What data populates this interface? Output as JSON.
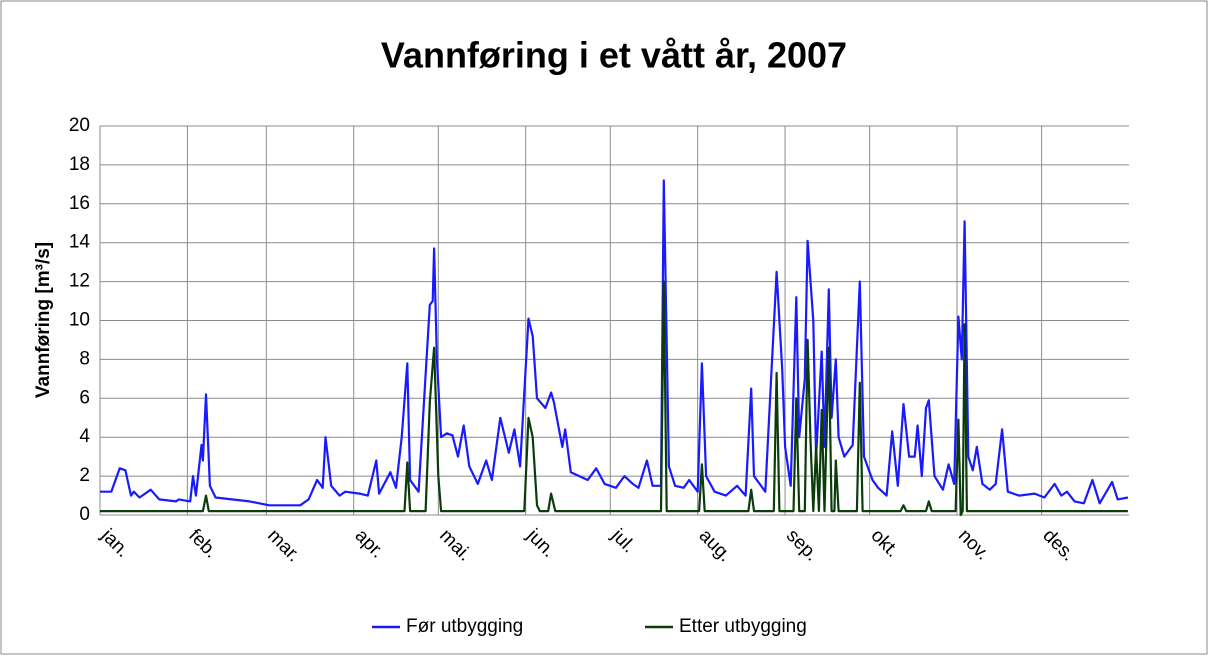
{
  "chart_data": {
    "type": "line",
    "title": "Vannføring i et vått år, 2007",
    "y_label": "Vannføring [m³/s]",
    "xlim": [
      0,
      365
    ],
    "xticks": [
      {
        "value": 0,
        "label": "jan."
      },
      {
        "value": 31,
        "label": "feb."
      },
      {
        "value": 59,
        "label": "mar."
      },
      {
        "value": 90,
        "label": "apr."
      },
      {
        "value": 120,
        "label": "mai."
      },
      {
        "value": 151,
        "label": "jun."
      },
      {
        "value": 181,
        "label": "jul."
      },
      {
        "value": 212,
        "label": "aug."
      },
      {
        "value": 243,
        "label": "sep."
      },
      {
        "value": 273,
        "label": "okt."
      },
      {
        "value": 304,
        "label": "nov."
      },
      {
        "value": 334,
        "label": "des."
      }
    ],
    "ylim": [
      0,
      20
    ],
    "yticks": [
      0,
      2,
      4,
      6,
      8,
      10,
      12,
      14,
      16,
      18,
      20
    ],
    "grid": true,
    "legend": "bottom",
    "series": [
      {
        "name": "Før utbygging",
        "color": "#1a1aff",
        "x": [
          0,
          4,
          7,
          9,
          11,
          12,
          14,
          18,
          21,
          27,
          28,
          32,
          33,
          34,
          36,
          36.5,
          37.6,
          39,
          41,
          53,
          60,
          71,
          74,
          77,
          79,
          80,
          82,
          85,
          87,
          92,
          95,
          98,
          99,
          103,
          105,
          107,
          109,
          110,
          113,
          115,
          117,
          118,
          118.5,
          119.5,
          121,
          123,
          125,
          127,
          129,
          131,
          134,
          137,
          139,
          142,
          145,
          147,
          149,
          152,
          153.5,
          155,
          158,
          160,
          161,
          164,
          165,
          167,
          170,
          173,
          176,
          179,
          183,
          186,
          189,
          191,
          194,
          196,
          199,
          200,
          201.8,
          204,
          207,
          209,
          212,
          213.5,
          215,
          218,
          222,
          226,
          229,
          231,
          232,
          236,
          240,
          242,
          243,
          245,
          247,
          248,
          250,
          251,
          253,
          254,
          256,
          257,
          258.5,
          259.5,
          261,
          262,
          264,
          267,
          269.5,
          271,
          274,
          276,
          279,
          281,
          283,
          285,
          287,
          289,
          290,
          291.5,
          293,
          294,
          296,
          299,
          301,
          303,
          304.5,
          305.7,
          306.7,
          308,
          309.6,
          311,
          313,
          315.6,
          317.7,
          320,
          322,
          326,
          331.5,
          335,
          338.6,
          341,
          343,
          345.7,
          349,
          352,
          354.6,
          359,
          361,
          364.6
        ],
        "values": [
          1.2,
          1.2,
          2.4,
          2.3,
          1.0,
          1.2,
          0.9,
          1.3,
          0.8,
          0.7,
          0.8,
          0.7,
          2.0,
          1.0,
          3.6,
          2.8,
          6.2,
          1.5,
          0.9,
          0.7,
          0.5,
          0.5,
          0.8,
          1.8,
          1.4,
          4.0,
          1.5,
          1.0,
          1.2,
          1.1,
          1.0,
          2.8,
          1.1,
          2.2,
          1.4,
          4.0,
          7.8,
          1.8,
          1.2,
          6.0,
          10.8,
          11.0,
          13.7,
          8.0,
          4.0,
          4.2,
          4.1,
          3.0,
          4.6,
          2.5,
          1.6,
          2.8,
          1.8,
          5.0,
          3.2,
          4.4,
          2.5,
          10.1,
          9.2,
          6.0,
          5.5,
          6.3,
          5.8,
          3.5,
          4.4,
          2.2,
          2.0,
          1.8,
          2.4,
          1.6,
          1.4,
          2.0,
          1.6,
          1.4,
          2.8,
          1.5,
          1.5,
          17.2,
          2.5,
          1.5,
          1.4,
          1.8,
          1.2,
          7.8,
          2.0,
          1.2,
          1.0,
          1.5,
          1.0,
          6.5,
          2.0,
          1.2,
          12.5,
          7.5,
          3.5,
          1.5,
          11.2,
          4.0,
          7.0,
          14.1,
          10.0,
          3.0,
          8.4,
          3.5,
          11.6,
          5.0,
          8.0,
          4.0,
          3.0,
          3.6,
          12.0,
          3.0,
          1.8,
          1.4,
          1.0,
          4.3,
          1.5,
          5.7,
          3.0,
          3.0,
          4.6,
          2.0,
          5.5,
          5.9,
          2.0,
          1.3,
          2.6,
          1.6,
          10.2,
          8.0,
          15.1,
          3.0,
          2.3,
          3.5,
          1.6,
          1.3,
          1.6,
          4.4,
          1.2,
          1.0,
          1.1,
          0.9,
          1.6,
          1.0,
          1.2,
          0.7,
          0.6,
          1.8,
          0.6,
          1.7,
          0.8,
          0.9
        ]
      },
      {
        "name": "Etter utbygging",
        "color": "#0b3d0b",
        "x": [
          0,
          36.5,
          37.6,
          38.6,
          108,
          109,
          110,
          115.5,
          117,
          118.5,
          120,
          121,
          150.5,
          152,
          153.5,
          155,
          156,
          159,
          160,
          161.5,
          199,
          200,
          201,
          212.5,
          213.5,
          214.5,
          230,
          231,
          232,
          239,
          240,
          241,
          246,
          247,
          248,
          250,
          251,
          252,
          253,
          254,
          255,
          256,
          257,
          258.5,
          259.5,
          260.5,
          261,
          262,
          268.5,
          269.5,
          270.5,
          284,
          285,
          286,
          293,
          294,
          295,
          303.5,
          304.5,
          305.3,
          306,
          306.7,
          307.5,
          364.6
        ],
        "values": [
          0.2,
          0.2,
          1.0,
          0.2,
          0.2,
          2.7,
          0.2,
          0.2,
          5.8,
          8.6,
          2.0,
          0.2,
          0.2,
          5.0,
          4.0,
          0.5,
          0.2,
          0.2,
          1.1,
          0.2,
          0.2,
          12.0,
          0.2,
          0.2,
          2.6,
          0.2,
          0.2,
          1.3,
          0.2,
          0.2,
          7.3,
          0.2,
          0.2,
          6.0,
          0.2,
          0.2,
          9.0,
          4.0,
          0.2,
          3.5,
          0.2,
          5.4,
          0.2,
          8.6,
          0.2,
          0.2,
          2.8,
          0.2,
          0.2,
          6.8,
          0.2,
          0.2,
          0.5,
          0.2,
          0.2,
          0.7,
          0.2,
          0.2,
          4.9,
          0,
          0.2,
          9.8,
          0.2,
          0.2
        ]
      }
    ]
  }
}
